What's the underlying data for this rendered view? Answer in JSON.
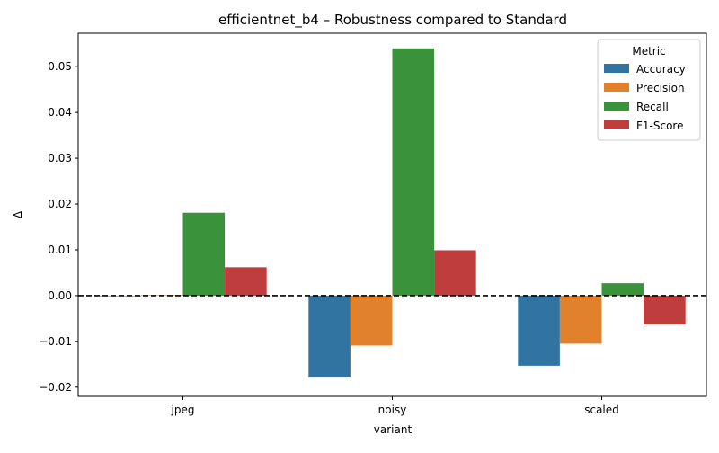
{
  "chart_data": {
    "type": "bar",
    "title": "efficientnet_b4 – Robustness compared to Standard",
    "xlabel": "variant",
    "ylabel": "Δ",
    "categories": [
      "jpeg",
      "noisy",
      "scaled"
    ],
    "series": [
      {
        "name": "Accuracy",
        "color": "#3274a1",
        "values": [
          0.0,
          -0.0179,
          -0.0153
        ]
      },
      {
        "name": "Precision",
        "color": "#e1812c",
        "values": [
          0.0001,
          -0.0109,
          -0.0105
        ]
      },
      {
        "name": "Recall",
        "color": "#3a923a",
        "values": [
          0.0181,
          0.054,
          0.0027
        ]
      },
      {
        "name": "F1-Score",
        "color": "#c03d3e",
        "values": [
          0.0062,
          0.0099,
          -0.0063
        ]
      }
    ],
    "ylim": [
      -0.022,
      0.0573
    ],
    "yticks": [
      -0.02,
      -0.01,
      0.0,
      0.01,
      0.02,
      0.03,
      0.04,
      0.05
    ],
    "ytick_labels": [
      "−0.02",
      "−0.01",
      "0.00",
      "0.01",
      "0.02",
      "0.03",
      "0.04",
      "0.05"
    ],
    "reference_line": {
      "value": 0.0,
      "style": "dashed",
      "color": "#000000"
    },
    "legend": {
      "title": "Metric",
      "position": "top-right"
    },
    "grid": false
  }
}
